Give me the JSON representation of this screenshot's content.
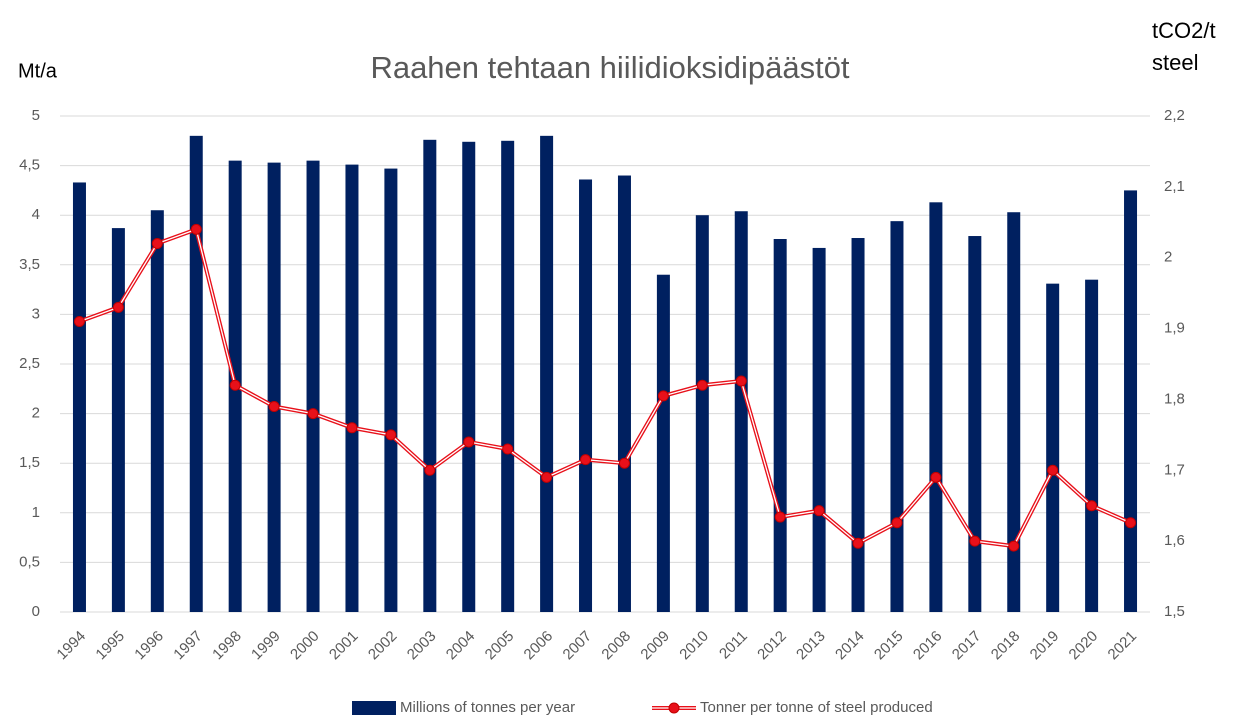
{
  "chart_data": {
    "type": "bar_line",
    "title": "Raahen tehtaan hiilidioksidipäästöt",
    "y_label": "Mt/a",
    "y2_label_lines": [
      "tCO2/t",
      "steel"
    ],
    "categories": [
      "1994",
      "1995",
      "1996",
      "1997",
      "1998",
      "1999",
      "2000",
      "2001",
      "2002",
      "2003",
      "2004",
      "2005",
      "2006",
      "2007",
      "2008",
      "2009",
      "2010",
      "2011",
      "2012",
      "2013",
      "2014",
      "2015",
      "2016",
      "2017",
      "2018",
      "2019",
      "2020",
      "2021"
    ],
    "series": [
      {
        "name": "Millions of tonnes per year",
        "type": "bar",
        "color": "#002060",
        "values": [
          4.33,
          3.87,
          4.05,
          4.8,
          4.55,
          4.53,
          4.55,
          4.51,
          4.47,
          4.76,
          4.74,
          4.75,
          4.8,
          4.36,
          4.4,
          3.4,
          4.0,
          4.04,
          3.76,
          3.67,
          3.77,
          3.94,
          4.13,
          3.79,
          4.03,
          3.31,
          3.35,
          4.25
        ]
      },
      {
        "name": "Tonner per tonne of steel produced",
        "type": "line",
        "axis": "y2",
        "color": "#e8101a",
        "values": [
          1.91,
          1.93,
          2.02,
          2.04,
          1.82,
          1.79,
          1.78,
          1.76,
          1.75,
          1.7,
          1.74,
          1.73,
          1.69,
          1.715,
          1.71,
          1.805,
          1.82,
          1.826,
          1.634,
          1.643,
          1.597,
          1.626,
          1.69,
          1.6,
          1.593,
          1.7,
          1.65,
          1.626
        ]
      }
    ],
    "ylim": [
      0,
      5
    ],
    "yticks": [
      0,
      {
        "value": 0.5,
        "label": "0,5"
      },
      1,
      {
        "value": 1.5,
        "label": "1,5"
      },
      2,
      {
        "value": 2.5,
        "label": "2,5"
      },
      3,
      {
        "value": 3.5,
        "label": "3,5"
      },
      4,
      {
        "value": 4.5,
        "label": "4,5"
      },
      5
    ],
    "y2lim": [
      1.5,
      2.2
    ],
    "y2ticks": [
      {
        "value": 1.5,
        "label": "1,5"
      },
      {
        "value": 1.6,
        "label": "1,6"
      },
      {
        "value": 1.7,
        "label": "1,7"
      },
      {
        "value": 1.8,
        "label": "1,8"
      },
      {
        "value": 1.9,
        "label": "1,9"
      },
      2,
      {
        "value": 2.1,
        "label": "2,1"
      },
      {
        "value": 2.2,
        "label": "2,2"
      }
    ],
    "grid": true,
    "legend": "bottom"
  }
}
